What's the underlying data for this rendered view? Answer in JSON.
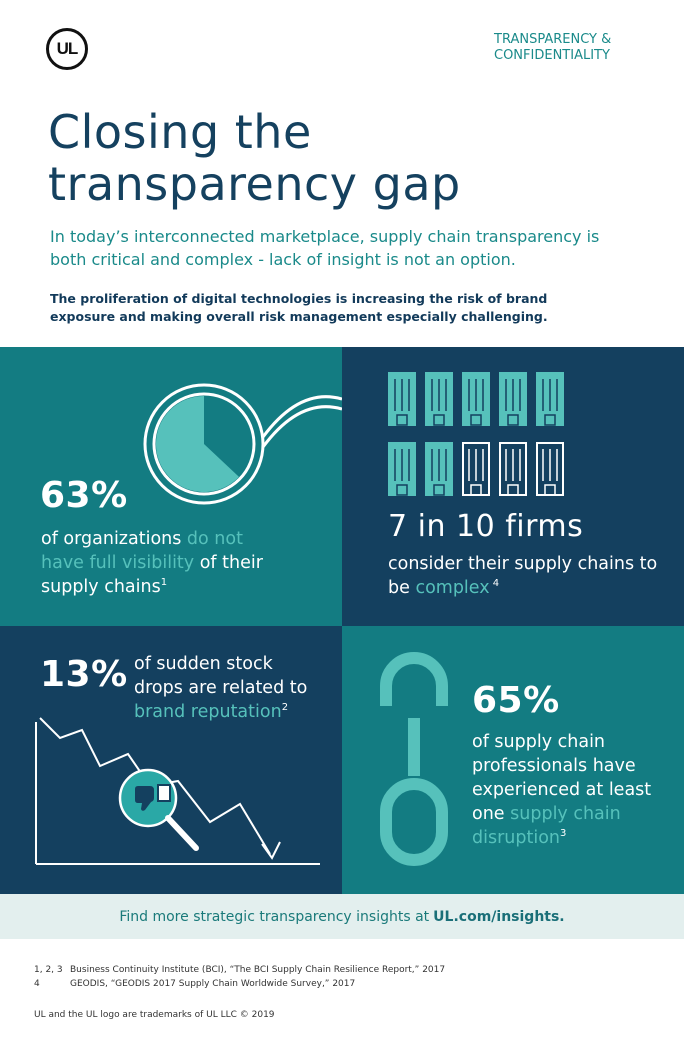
{
  "header": {
    "logo_text": "UL",
    "category": "TRANSPARENCY & CONFIDENTIALITY",
    "title_line1": "Closing the",
    "title_line2": "transparency gap",
    "lede": "In today’s interconnected marketplace, supply chain transparency is both critical and complex - lack of insight is not an option.",
    "intro": "The proliferation of digital technologies is increasing the risk of brand exposure and making overall risk management especially challenging."
  },
  "stats": {
    "visibility": {
      "value": "63%",
      "text_a": "of organizations ",
      "highlight": "do not have full visibility",
      "text_b": " of their supply chains",
      "ref": "1",
      "pie_fraction": 0.63
    },
    "complex": {
      "value": "7 in 10 firms",
      "text_a": "consider their supply chains to be ",
      "highlight": "complex",
      "ref": " 4",
      "filled": 7,
      "total": 10
    },
    "stock": {
      "value": "13%",
      "text_a": "of sudden stock drops are related to ",
      "highlight": "brand reputation",
      "ref": "2"
    },
    "disruption": {
      "value": "65%",
      "text_a": "of supply chain professionals have experienced at least one ",
      "highlight": "supply chain disruption",
      "ref": "3"
    }
  },
  "footer": {
    "cta_text": "Find more strategic transparency insights at",
    "cta_link": "UL.com/insights.",
    "refs": [
      {
        "num": "1, 2, 3",
        "text": "Business Continuity Institute (BCI), “The BCI Supply Chain Resilience Report,” 2017"
      },
      {
        "num": "4",
        "text": "GEODIS, “GEODIS 2017 Supply Chain Worldwide Survey,” 2017"
      }
    ],
    "trademark": "UL and the UL logo are trademarks of UL LLC © 2019"
  },
  "colors": {
    "teal": "#137c82",
    "navy": "#14405f",
    "accent": "#56c1bb"
  }
}
